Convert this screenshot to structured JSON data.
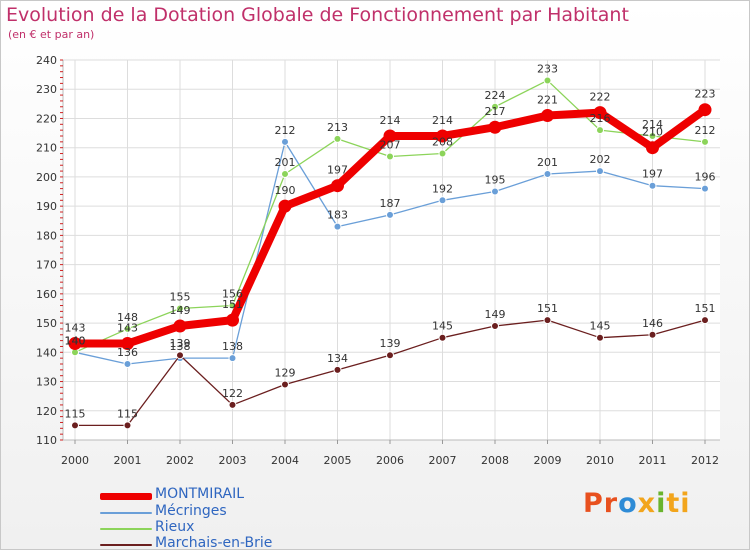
{
  "chart_data": {
    "type": "line",
    "title": "Evolution de la Dotation Globale de Fonctionnement par Habitant",
    "subtitle": "(en € et par an)",
    "xlabel": "",
    "ylabel": "",
    "ylim": [
      110,
      240
    ],
    "yticks": [
      110,
      120,
      130,
      140,
      150,
      160,
      170,
      180,
      190,
      200,
      210,
      220,
      230,
      240
    ],
    "categories": [
      "2000",
      "2001",
      "2002",
      "2003",
      "2004",
      "2005",
      "2006",
      "2007",
      "2008",
      "2009",
      "2010",
      "2011",
      "2012"
    ],
    "series": [
      {
        "name": "MONTMIRAIL",
        "color": "#ee0000",
        "values": [
          143,
          143,
          149,
          151,
          190,
          197,
          214,
          214,
          217,
          221,
          222,
          210,
          223
        ]
      },
      {
        "name": "Mécringes",
        "color": "#6a9fd8",
        "values": [
          140,
          136,
          138,
          138,
          212,
          183,
          187,
          192,
          195,
          201,
          202,
          197,
          196
        ]
      },
      {
        "name": "Rieux",
        "color": "#8cd45a",
        "values": [
          140,
          148,
          155,
          156,
          201,
          213,
          207,
          208,
          224,
          233,
          216,
          214,
          212
        ]
      },
      {
        "name": "Marchais-en-Brie",
        "color": "#6b1f1f",
        "values": [
          115,
          115,
          139,
          122,
          129,
          134,
          139,
          145,
          149,
          151,
          145,
          146,
          151
        ]
      }
    ],
    "grid": true,
    "legend": "bottom-left"
  },
  "logo": {
    "p1": "Pr",
    "p2": "o",
    "p3": "x",
    "p4": "i",
    "p5": "ti"
  }
}
